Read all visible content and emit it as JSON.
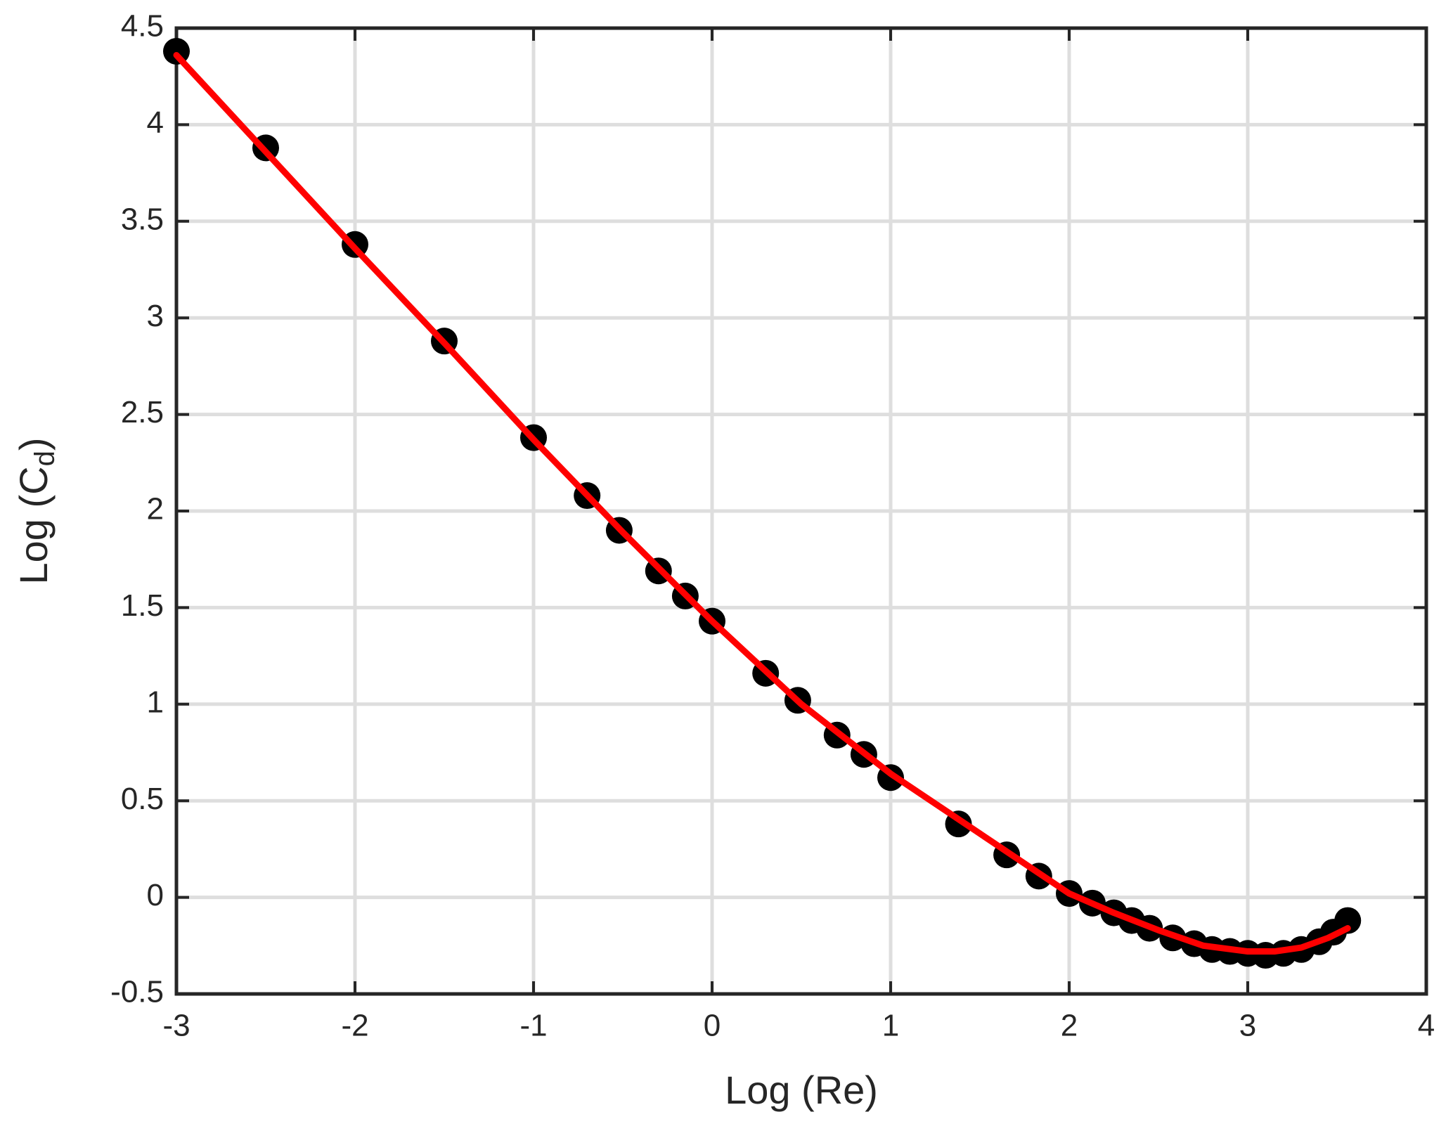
{
  "chart_data": {
    "type": "scatter",
    "xlabel": "Log (Re)",
    "ylabel": {
      "main": "Log (C",
      "sub": "d",
      "end": ")"
    },
    "xlim": [
      -3,
      4
    ],
    "xticks": [
      -3,
      -2,
      -1,
      0,
      1,
      2,
      3,
      4
    ],
    "ylim": [
      -0.5,
      4.5
    ],
    "yticks": [
      -0.5,
      0,
      0.5,
      1,
      1.5,
      2,
      2.5,
      3,
      3.5,
      4,
      4.5
    ],
    "grid": true,
    "series": [
      {
        "mode": "markers",
        "color": "#000000",
        "x": [
          -3,
          -2.5,
          -2,
          -1.5,
          -1,
          -0.7,
          -0.52,
          -0.3,
          -0.15,
          0,
          0.3,
          0.48,
          0.7,
          0.85,
          1,
          1.38,
          1.65,
          1.83,
          2,
          2.13,
          2.25,
          2.35,
          2.45,
          2.58,
          2.7,
          2.8,
          2.9,
          3.0,
          3.1,
          3.2,
          3.3,
          3.4,
          3.48,
          3.56
        ],
        "y": [
          4.38,
          3.88,
          3.38,
          2.88,
          2.38,
          2.08,
          1.9,
          1.69,
          1.56,
          1.43,
          1.16,
          1.02,
          0.84,
          0.74,
          0.62,
          0.38,
          0.22,
          0.11,
          0.02,
          -0.03,
          -0.08,
          -0.12,
          -0.16,
          -0.21,
          -0.24,
          -0.27,
          -0.28,
          -0.29,
          -0.3,
          -0.29,
          -0.27,
          -0.23,
          -0.18,
          -0.12
        ]
      },
      {
        "mode": "line",
        "color": "#ff0000",
        "x": [
          -3,
          -2.5,
          -2,
          -1.5,
          -1,
          -0.5,
          0,
          0.5,
          1,
          1.5,
          2,
          2.25,
          2.5,
          2.75,
          3,
          3.15,
          3.3,
          3.45,
          3.56
        ],
        "y": [
          4.36,
          3.86,
          3.36,
          2.87,
          2.37,
          1.89,
          1.43,
          1.0,
          0.64,
          0.33,
          0.02,
          -0.08,
          -0.17,
          -0.25,
          -0.28,
          -0.28,
          -0.26,
          -0.21,
          -0.16
        ]
      }
    ]
  }
}
